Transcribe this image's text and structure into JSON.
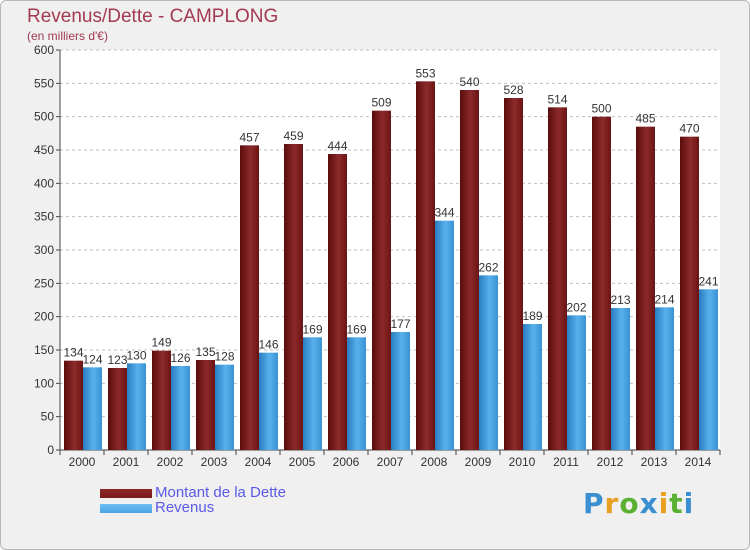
{
  "title": "Revenus/Dette - CAMPLONG",
  "subtitle": "(en milliers d'€)",
  "colors": {
    "debt": "#7a1a1a",
    "revenue": "#4aa3e2",
    "title": "#a33a52",
    "legend_text": "#5a5ae8"
  },
  "legend": {
    "debt_label": "Montant de la Dette",
    "revenue_label": "Revenus"
  },
  "logo": {
    "text": "Proxiti",
    "colors": [
      "#3a8fd0",
      "#e8a020",
      "#5ab030",
      "#3a8fd0",
      "#e8a020",
      "#5ab030",
      "#3a8fd0"
    ]
  },
  "chart_data": {
    "type": "bar",
    "categories": [
      "2000",
      "2001",
      "2002",
      "2003",
      "2004",
      "2005",
      "2006",
      "2007",
      "2008",
      "2009",
      "2010",
      "2011",
      "2012",
      "2013",
      "2014"
    ],
    "series": [
      {
        "name": "Montant de la Dette",
        "values": [
          134,
          123,
          149,
          135,
          457,
          459,
          444,
          509,
          553,
          540,
          528,
          514,
          500,
          485,
          470
        ]
      },
      {
        "name": "Revenus",
        "values": [
          124,
          130,
          126,
          128,
          146,
          169,
          169,
          177,
          344,
          262,
          189,
          202,
          213,
          214,
          241
        ]
      }
    ],
    "yticks": [
      0,
      50,
      100,
      150,
      200,
      250,
      300,
      350,
      400,
      450,
      500,
      550,
      600
    ],
    "ylim": [
      0,
      600
    ],
    "grid": true,
    "legend_position": "bottom-left"
  }
}
